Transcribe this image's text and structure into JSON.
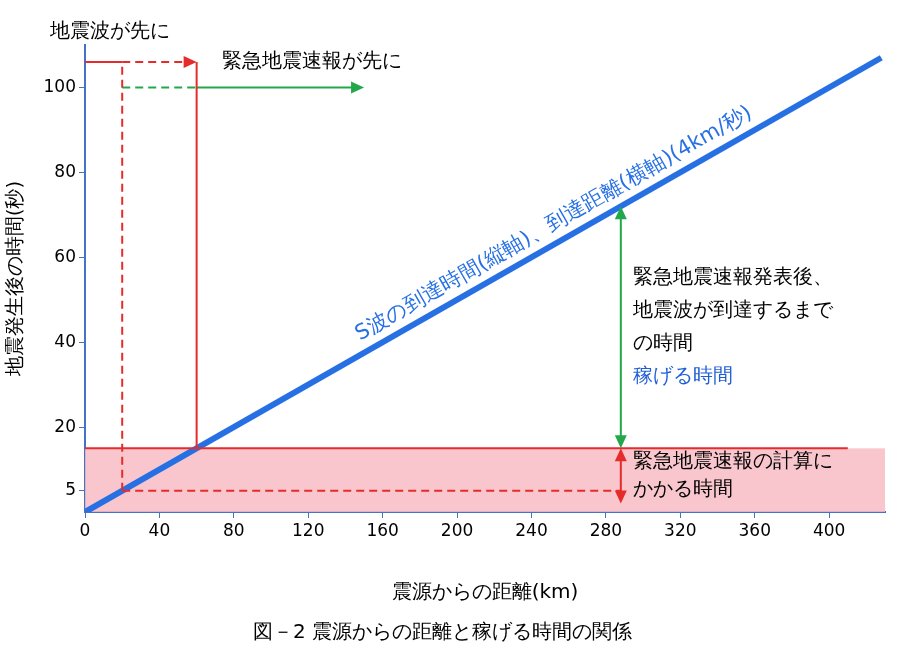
{
  "chart_data": {
    "type": "line",
    "title": "図－2 震源からの距離と稼げる時間の関係",
    "x_label": "震源からの距離(km)",
    "y_label": "地震発生後の時間(秒)",
    "series": [
      {
        "name": "S波の到達時間(縦軸)、到達距離(横軸)(4km/秒)",
        "color": "#2670e4",
        "x": [
          0,
          428
        ],
        "values": [
          0,
          107
        ]
      }
    ],
    "xlim": [
      0,
      430
    ],
    "xticks": [
      0,
      40,
      80,
      120,
      160,
      200,
      240,
      280,
      320,
      360,
      400
    ],
    "ylim": [
      0,
      110
    ],
    "yticks": [
      5,
      20,
      40,
      60,
      80,
      100
    ],
    "grid": false,
    "band": {
      "x": [
        0,
        430
      ],
      "y": [
        0,
        15
      ],
      "color": "#f7bcc3"
    },
    "lines": [
      {
        "x": [
          0,
          20
        ],
        "y": [
          106,
          106
        ],
        "color": "#e62b2b",
        "line_style": "solid",
        "marker": "none"
      },
      {
        "x": [
          20,
          60
        ],
        "y": [
          106,
          106
        ],
        "color": "#e62b2b",
        "line_style": "dashed",
        "marker": "arrow"
      },
      {
        "x": [
          20,
          60
        ],
        "y": [
          100,
          100
        ],
        "color": "#22a84a",
        "line_style": "dashed",
        "marker": "none"
      },
      {
        "x": [
          60,
          150
        ],
        "y": [
          100,
          100
        ],
        "color": "#22a84a",
        "line_style": "solid",
        "marker": "arrow"
      },
      {
        "x": [
          60,
          60
        ],
        "y": [
          15,
          106
        ],
        "color": "#e62b2b",
        "line_style": "solid",
        "marker": "none"
      },
      {
        "x": [
          20,
          20
        ],
        "y": [
          5,
          106
        ],
        "color": "#e62b2b",
        "line_style": "dashed",
        "marker": "none"
      },
      {
        "x": [
          20,
          288
        ],
        "y": [
          5,
          5
        ],
        "color": "#e62b2b",
        "line_style": "dashed",
        "marker": "none"
      },
      {
        "x": [
          0,
          410
        ],
        "y": [
          15,
          15
        ],
        "color": "#e62b2b",
        "line_style": "solid",
        "marker": "none"
      },
      {
        "x": [
          288,
          288
        ],
        "y": [
          15,
          72
        ],
        "color": "#22a84a",
        "line_style": "solid",
        "marker": "double_arrow"
      },
      {
        "x": [
          288,
          288
        ],
        "y": [
          2,
          15
        ],
        "color": "#e62b2b",
        "line_style": "solid",
        "marker": "double_arrow"
      }
    ],
    "annotations": [
      {
        "text": [
          "地震波が先に"
        ],
        "colors": [
          "#000000"
        ]
      },
      {
        "text": [
          "緊急地震速報が先に"
        ],
        "colors": [
          "#000000"
        ]
      },
      {
        "text": [
          "緊急地震速報発表後、",
          "地震波が到達するまで",
          "の時間",
          "稼げる時間"
        ],
        "colors": [
          "#000000",
          "#000000",
          "#000000",
          "#1f5fd6"
        ]
      },
      {
        "text": [
          "緊急地震速報の計算に",
          "かかる時間"
        ],
        "colors": [
          "#000000",
          "#000000"
        ]
      }
    ]
  }
}
